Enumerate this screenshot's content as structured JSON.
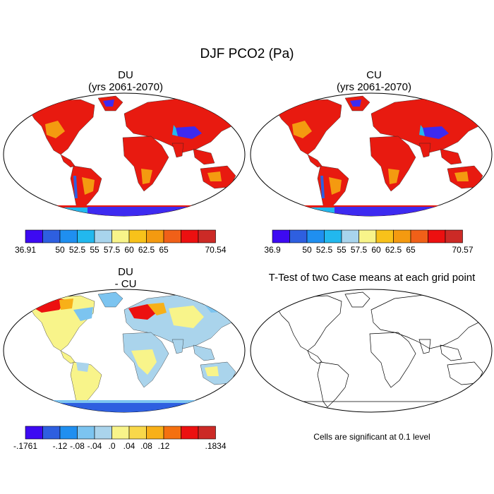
{
  "figure": {
    "title": "DJF PCO2 (Pa)"
  },
  "panels": [
    {
      "title_line1": "DU",
      "title_line2": "(yrs 2061-2070)",
      "colorbar": {
        "colors": [
          "#3d0af2",
          "#2e5fe0",
          "#1f8ff0",
          "#22b8ee",
          "#a8d4ec",
          "#f8f48a",
          "#f8c21a",
          "#f49a10",
          "#f06018",
          "#ec1010",
          "#cc2a26"
        ],
        "labels": [
          "36.91",
          "50",
          "52.5",
          "55",
          "57.5",
          "60",
          "62.5",
          "65",
          "70.54"
        ],
        "label_slots": [
          0,
          2,
          3,
          4,
          5,
          6,
          7,
          8,
          11
        ]
      }
    },
    {
      "title_line1": "CU",
      "title_line2": "(yrs 2061-2070)",
      "colorbar": {
        "colors": [
          "#3d0af2",
          "#2e5fe0",
          "#1f8ff0",
          "#22b8ee",
          "#a8d4ec",
          "#f8f48a",
          "#f8c21a",
          "#f49a10",
          "#f06018",
          "#ec1010",
          "#cc2a26"
        ],
        "labels": [
          "36.9",
          "50",
          "52.5",
          "55",
          "57.5",
          "60",
          "62.5",
          "65",
          "70.57"
        ],
        "label_slots": [
          0,
          2,
          3,
          4,
          5,
          6,
          7,
          8,
          11
        ]
      }
    },
    {
      "title_line1": "DU",
      "title_line2": "- CU",
      "colorbar": {
        "colors": [
          "#3d0af2",
          "#2e5fe0",
          "#1f8ff0",
          "#7cc4f0",
          "#aad4ec",
          "#f8f48a",
          "#f8d84a",
          "#f8b018",
          "#f47010",
          "#ec1010",
          "#cc2a26"
        ],
        "labels": [
          "-.1761",
          "-.12",
          "-.08",
          "-.04",
          ".0",
          ".04",
          ".08",
          ".12",
          ".1834"
        ],
        "label_slots": [
          0,
          2,
          3,
          4,
          5,
          6,
          7,
          8,
          11
        ]
      }
    },
    {
      "title_line1": "T-Test of two Case means at each grid point",
      "note": "Cells are significant at 0.1 level"
    }
  ]
}
